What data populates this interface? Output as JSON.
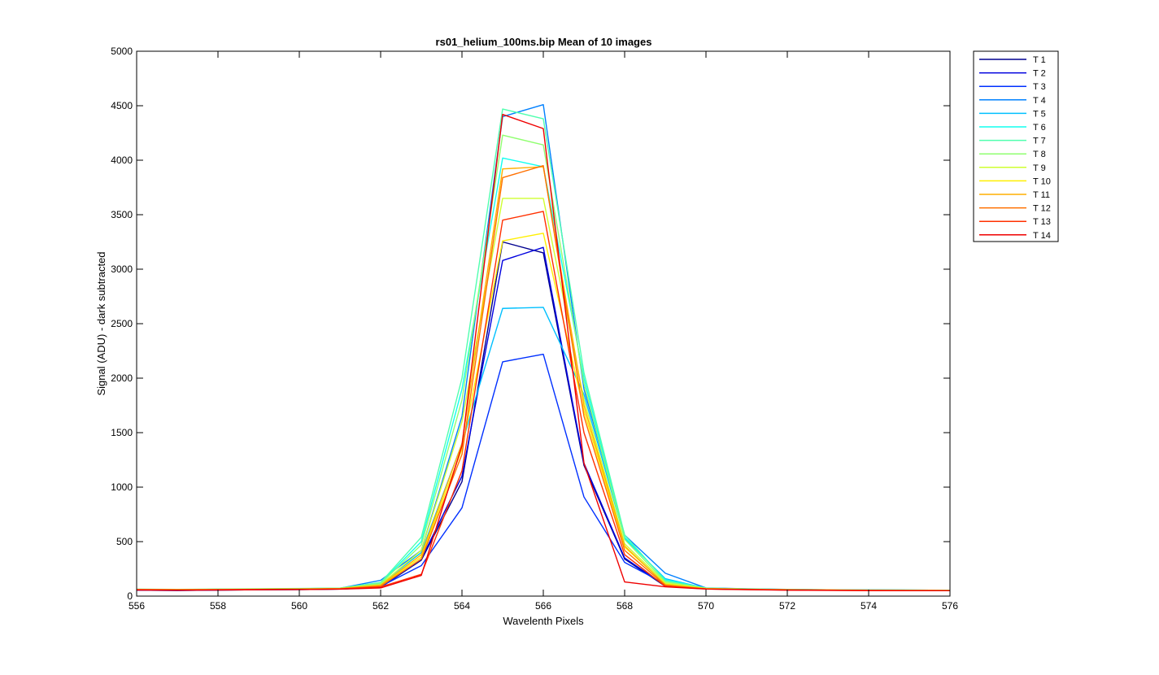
{
  "chart_data": {
    "type": "line",
    "title": "rs01_helium_100ms.bip  Mean of 10 images",
    "xlabel": "Wavelenth Pixels",
    "ylabel": "Signal (ADU) - dark subtracted",
    "xlim": [
      556,
      576
    ],
    "ylim": [
      0,
      5000
    ],
    "xticks": [
      556,
      558,
      560,
      562,
      564,
      566,
      568,
      570,
      572,
      574,
      576
    ],
    "yticks": [
      0,
      500,
      1000,
      1500,
      2000,
      2500,
      3000,
      3500,
      4000,
      4500,
      5000
    ],
    "grid": false,
    "legend_position": "outside-top-right",
    "x": [
      556,
      557,
      558,
      559,
      560,
      561,
      562,
      563,
      564,
      565,
      566,
      567,
      568,
      569,
      570,
      571,
      572,
      573,
      574,
      575,
      576
    ],
    "series": [
      {
        "name": "T 1",
        "color": "#00008f",
        "values": [
          55,
          52,
          56,
          58,
          60,
          65,
          80,
          330,
          1050,
          3250,
          3150,
          1200,
          340,
          90,
          70,
          62,
          58,
          56,
          54,
          53,
          52
        ]
      },
      {
        "name": "T 2",
        "color": "#0000df",
        "values": [
          55,
          52,
          56,
          58,
          60,
          65,
          80,
          340,
          1100,
          3080,
          3200,
          1220,
          350,
          95,
          70,
          62,
          58,
          56,
          54,
          53,
          52
        ]
      },
      {
        "name": "T 3",
        "color": "#0030ff",
        "values": [
          60,
          58,
          60,
          62,
          65,
          70,
          90,
          280,
          810,
          2150,
          2220,
          910,
          310,
          110,
          72,
          64,
          60,
          57,
          55,
          54,
          53
        ]
      },
      {
        "name": "T 4",
        "color": "#0080ff",
        "values": [
          62,
          60,
          63,
          65,
          68,
          72,
          145,
          420,
          1650,
          4400,
          4510,
          1900,
          560,
          210,
          75,
          68,
          62,
          58,
          56,
          55,
          54
        ]
      },
      {
        "name": "T 5",
        "color": "#00c0ff",
        "values": [
          60,
          58,
          60,
          63,
          66,
          70,
          110,
          400,
          1400,
          2640,
          2650,
          1850,
          530,
          160,
          72,
          65,
          60,
          57,
          55,
          54,
          53
        ]
      },
      {
        "name": "T 6",
        "color": "#10ffef",
        "values": [
          62,
          60,
          63,
          66,
          68,
          72,
          120,
          500,
          1900,
          4020,
          3940,
          2000,
          540,
          150,
          74,
          66,
          61,
          58,
          56,
          55,
          54
        ]
      },
      {
        "name": "T 7",
        "color": "#50ffaf",
        "values": [
          64,
          62,
          65,
          68,
          70,
          74,
          125,
          540,
          2000,
          4470,
          4380,
          2050,
          560,
          140,
          74,
          66,
          61,
          58,
          56,
          55,
          54
        ]
      },
      {
        "name": "T 8",
        "color": "#90ff70",
        "values": [
          63,
          61,
          64,
          66,
          68,
          72,
          115,
          470,
          1800,
          4230,
          4140,
          1950,
          520,
          130,
          72,
          65,
          60,
          57,
          55,
          54,
          53
        ]
      },
      {
        "name": "T 9",
        "color": "#cfff30",
        "values": [
          62,
          60,
          62,
          64,
          66,
          70,
          105,
          420,
          1600,
          3650,
          3650,
          1800,
          480,
          120,
          70,
          64,
          59,
          56,
          54,
          53,
          52
        ]
      },
      {
        "name": "T 10",
        "color": "#ffef00",
        "values": [
          60,
          58,
          60,
          62,
          64,
          68,
          95,
          360,
          1350,
          3260,
          3330,
          1700,
          450,
          110,
          68,
          62,
          58,
          55,
          53,
          52,
          51
        ]
      },
      {
        "name": "T 11",
        "color": "#ffaf00",
        "values": [
          61,
          59,
          61,
          63,
          65,
          69,
          100,
          380,
          1400,
          3920,
          3940,
          1750,
          460,
          105,
          68,
          62,
          58,
          55,
          53,
          52,
          51
        ]
      },
      {
        "name": "T 12",
        "color": "#ff7000",
        "values": [
          60,
          58,
          60,
          62,
          64,
          68,
          90,
          340,
          1300,
          3840,
          3950,
          1650,
          420,
          100,
          67,
          61,
          57,
          55,
          53,
          52,
          51
        ]
      },
      {
        "name": "T 13",
        "color": "#ff3000",
        "values": [
          58,
          56,
          58,
          60,
          62,
          66,
          85,
          200,
          1150,
          3450,
          3530,
          1500,
          380,
          90,
          66,
          60,
          56,
          54,
          52,
          51,
          50
        ]
      },
      {
        "name": "T 14",
        "color": "#ef0000",
        "values": [
          56,
          54,
          56,
          58,
          60,
          64,
          75,
          190,
          1380,
          4420,
          4290,
          1220,
          130,
          85,
          65,
          59,
          55,
          53,
          51,
          50,
          50
        ]
      }
    ]
  }
}
